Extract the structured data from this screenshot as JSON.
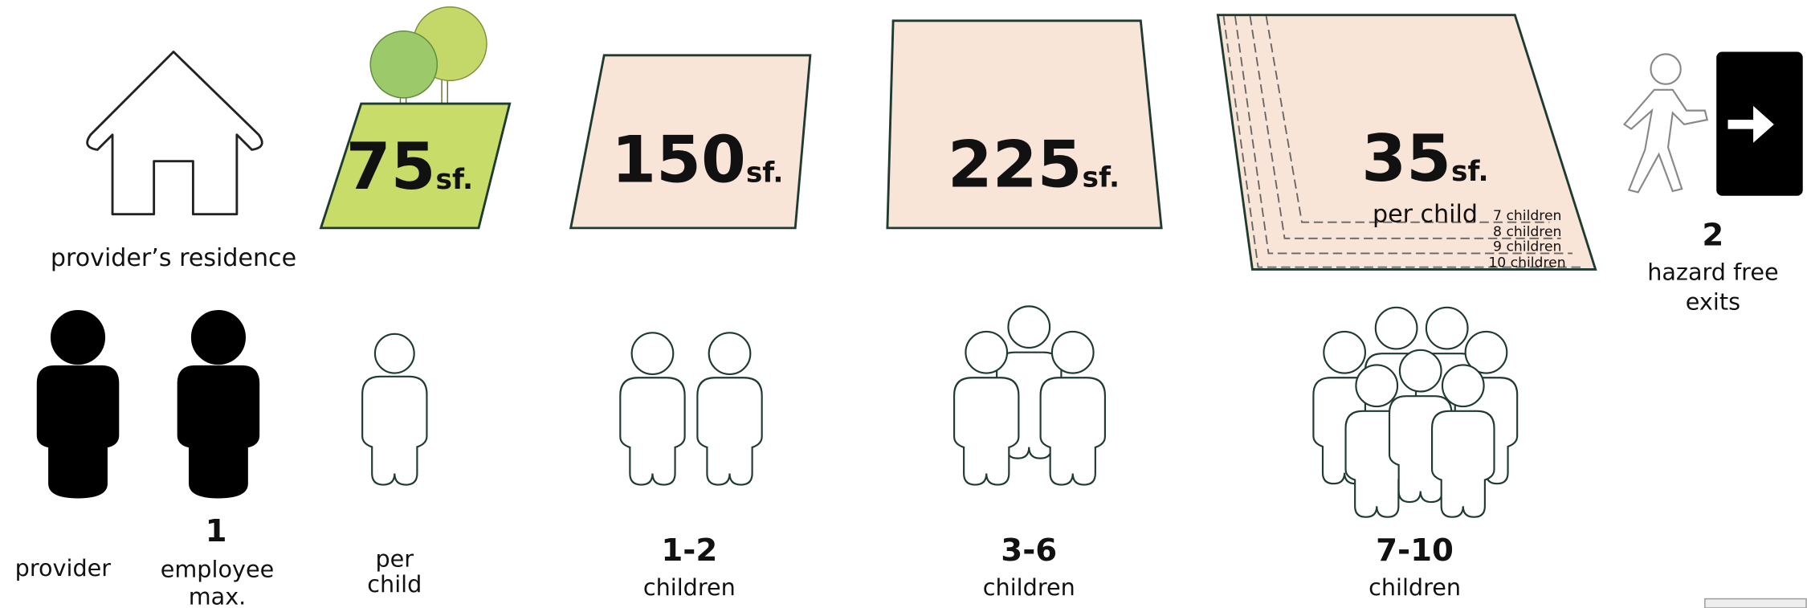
{
  "residence": {
    "label": "provider’s residence"
  },
  "outdoor": {
    "number": 75,
    "unit": "sf."
  },
  "areas": [
    {
      "number": 150,
      "unit": "sf."
    },
    {
      "number": 225,
      "unit": "sf."
    },
    {
      "number": 35,
      "unit": "sf.",
      "note": "per child",
      "levels": [
        "7 children",
        "8 children",
        "9 children",
        "10 children"
      ]
    }
  ],
  "exits": {
    "number": 2,
    "label_lines": [
      "hazard free",
      "exits"
    ]
  },
  "staff": [
    {
      "label": "provider"
    },
    {
      "number": 1,
      "label_lines": [
        "employee",
        "max."
      ]
    }
  ],
  "groups": [
    {
      "label_lines": [
        "per",
        "child"
      ]
    },
    {
      "number": "1-2",
      "label": "children"
    },
    {
      "number": "3-6",
      "label": "children"
    },
    {
      "number": "7-10",
      "label": "children"
    }
  ]
}
